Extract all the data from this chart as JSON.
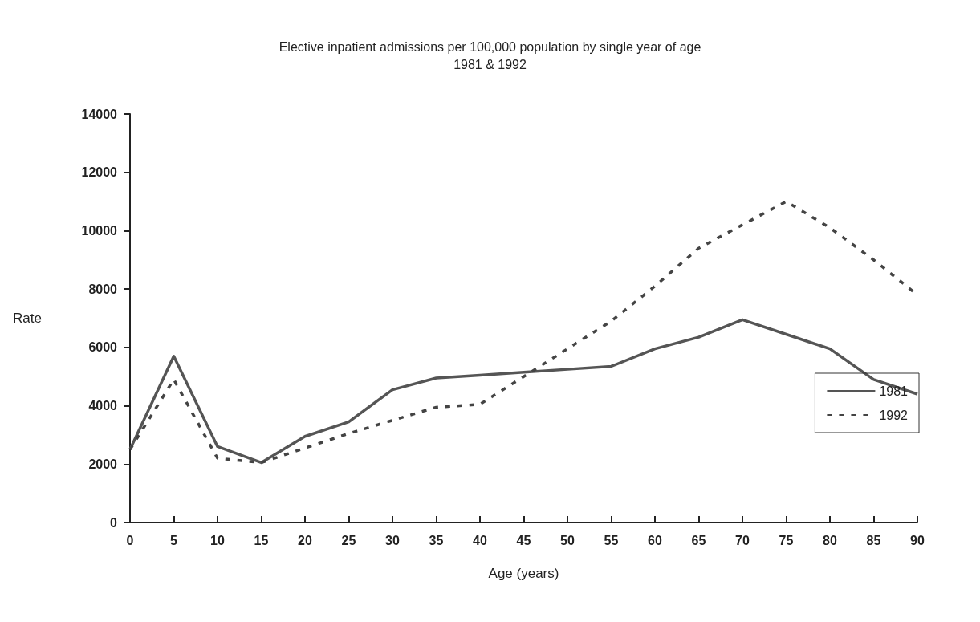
{
  "chart_data": {
    "type": "line",
    "title": "Elective inpatient admissions per 100,000 population by single year of age",
    "subtitle": "1981 & 1992",
    "xlabel": "Age (years)",
    "ylabel": "Rate",
    "x": [
      0,
      5,
      10,
      15,
      20,
      25,
      30,
      35,
      40,
      45,
      50,
      55,
      60,
      65,
      70,
      75,
      80,
      85,
      90
    ],
    "series": [
      {
        "name": "1981",
        "color": "#555555",
        "line_style": "solid",
        "values": [
          2500,
          5700,
          2600,
          2050,
          2950,
          3450,
          4550,
          4950,
          5050,
          5150,
          5250,
          5350,
          5950,
          6350,
          6950,
          6450,
          5950,
          4900,
          4400
        ]
      },
      {
        "name": "1992",
        "color": "#444444",
        "line_style": "dashed",
        "values": [
          2500,
          4900,
          2200,
          2050,
          2550,
          3050,
          3500,
          3950,
          4050,
          5000,
          5950,
          6900,
          8100,
          9400,
          10200,
          11000,
          10100,
          9000,
          7800
        ]
      }
    ],
    "xlim": [
      0,
      90
    ],
    "xticks": [
      0,
      5,
      10,
      15,
      20,
      25,
      30,
      35,
      40,
      45,
      50,
      55,
      60,
      65,
      70,
      75,
      80,
      85,
      90
    ],
    "ylim": [
      0,
      14000
    ],
    "yticks": [
      0,
      2000,
      4000,
      6000,
      8000,
      10000,
      12000,
      14000
    ],
    "grid": false,
    "legend": "right",
    "marker": "none"
  }
}
